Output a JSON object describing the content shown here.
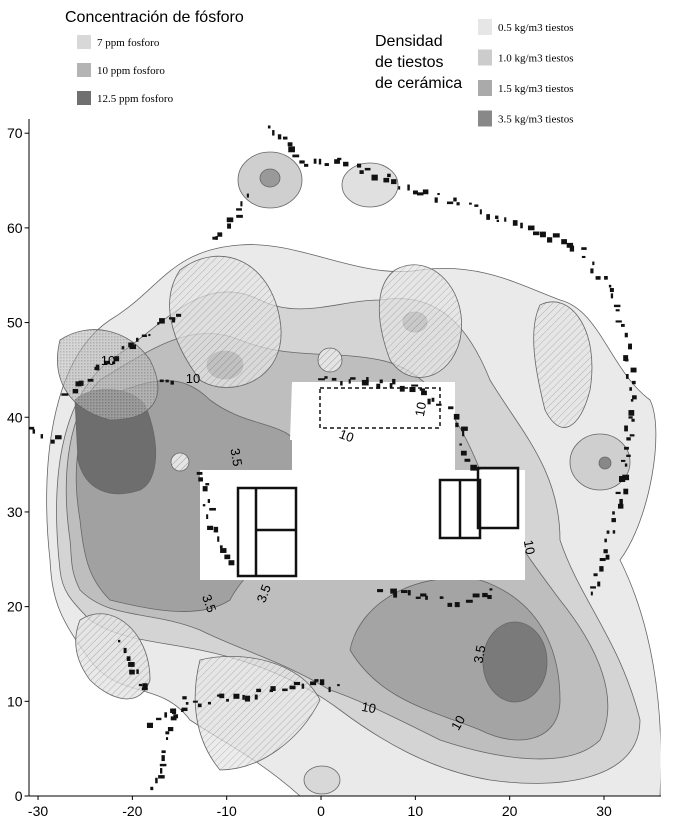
{
  "chart_data": {
    "type": "contour-map",
    "phosphorus_legend": {
      "title": "Concentración de fósforo",
      "items": [
        {
          "label": "7 ppm fosforo",
          "color": "#d8d8d8"
        },
        {
          "label": "10 ppm fosforo",
          "color": "#b4b4b4"
        },
        {
          "label": "12.5 ppm fosforo",
          "color": "#707070"
        }
      ]
    },
    "density_legend": {
      "title": [
        "Densidad",
        "de tiestos",
        "de cerámica"
      ],
      "items": [
        {
          "label": "0.5 kg/m3 tiestos",
          "color": "#e6e6e6"
        },
        {
          "label": "1.0 kg/m3 tiestos",
          "color": "#cccccc"
        },
        {
          "label": "1.5 kg/m3 tiestos",
          "color": "#aaaaaa"
        },
        {
          "label": "3.5 kg/m3 tiestos",
          "color": "#888888"
        }
      ]
    },
    "contour_labels": [
      "10",
      "10",
      "10",
      "10",
      "10",
      "10",
      "10",
      "3.5",
      "3.5",
      "3.5",
      "3.5"
    ],
    "xlim": [
      -31,
      36
    ],
    "ylim": [
      0,
      71.5
    ],
    "xticks": [
      -30,
      -20,
      -10,
      0,
      10,
      20,
      30
    ],
    "yticks": [
      0,
      10,
      20,
      30,
      40,
      50,
      60,
      70
    ]
  }
}
